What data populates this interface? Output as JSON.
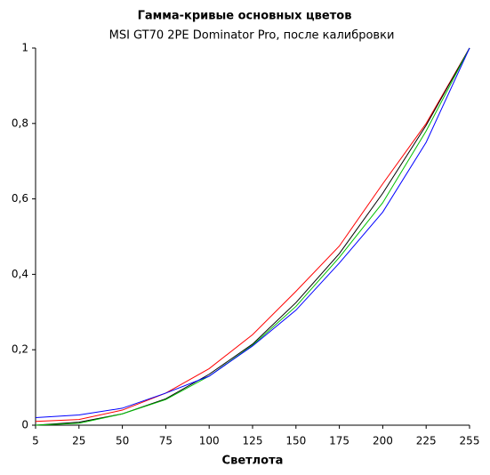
{
  "chart_data": {
    "type": "line",
    "title": "Гамма-кривые  основных цветов",
    "subtitle": "MSI GT70 2PE Dominator Pro, после калибровки",
    "x_label": "Светлота",
    "categories": [
      "5",
      "25",
      "50",
      "75",
      "100",
      "125",
      "150",
      "175",
      "200",
      "225",
      "255"
    ],
    "series": [
      {
        "color": "#ff0000",
        "values": [
          0.01,
          0.015,
          0.04,
          0.085,
          0.15,
          0.24,
          0.355,
          0.475,
          0.64,
          0.8,
          1
        ]
      },
      {
        "color": "#000000",
        "values": [
          0,
          0.008,
          0.03,
          0.07,
          0.135,
          0.215,
          0.325,
          0.455,
          0.615,
          0.795,
          1
        ]
      },
      {
        "color": "#00c000",
        "values": [
          0,
          0.005,
          0.03,
          0.068,
          0.13,
          0.212,
          0.315,
          0.445,
          0.59,
          0.78,
          1
        ]
      },
      {
        "color": "#0000ff",
        "values": [
          0.02,
          0.027,
          0.045,
          0.085,
          0.13,
          0.21,
          0.305,
          0.43,
          0.565,
          0.75,
          1
        ]
      }
    ],
    "ylim": [
      0,
      1
    ],
    "yticks": [
      0,
      {
        "value": 0.2,
        "label": "0,2"
      },
      {
        "value": 0.4,
        "label": "0,4"
      },
      {
        "value": 0.6,
        "label": "0,6"
      },
      {
        "value": 0.8,
        "label": "0,8"
      },
      1
    ],
    "grid": false
  }
}
